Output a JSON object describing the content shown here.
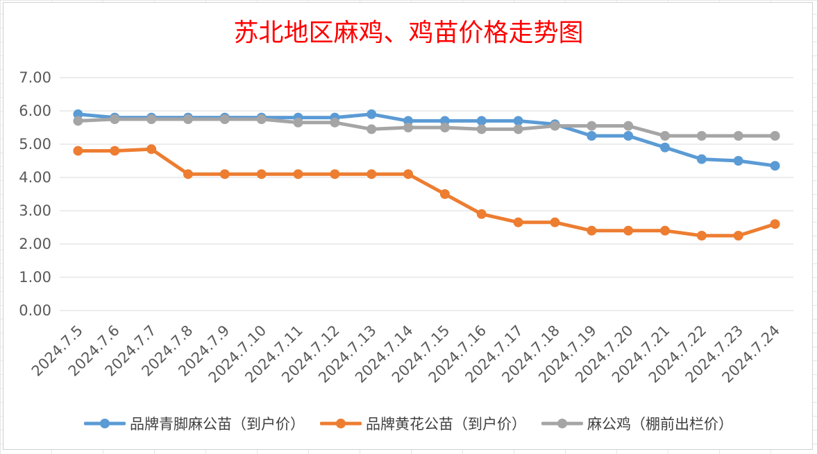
{
  "chart_data": {
    "type": "line",
    "title": "苏北地区麻鸡、鸡苗价格走势图",
    "xlabel": "",
    "ylabel": "",
    "ylim": [
      0,
      7
    ],
    "y_ticks": [
      "0.00",
      "1.00",
      "2.00",
      "3.00",
      "4.00",
      "5.00",
      "6.00",
      "7.00"
    ],
    "grid": true,
    "legend_position": "bottom",
    "categories": [
      "2024.7.5",
      "2024.7.6",
      "2024.7.7",
      "2024.7.8",
      "2024.7.9",
      "2024.7.10",
      "2024.7.11",
      "2024.7.12",
      "2024.7.13",
      "2024.7.14",
      "2024.7.15",
      "2024.7.16",
      "2024.7.17",
      "2024.7.18",
      "2024.7.19",
      "2024.7.20",
      "2024.7.21",
      "2024.7.22",
      "2024.7.23",
      "2024.7.24"
    ],
    "series": [
      {
        "name": "品牌青脚麻公苗（到户价）",
        "color": "#5b9bd5",
        "values": [
          5.9,
          5.8,
          5.8,
          5.8,
          5.8,
          5.8,
          5.8,
          5.8,
          5.9,
          5.7,
          5.7,
          5.7,
          5.7,
          5.6,
          5.25,
          5.25,
          4.9,
          4.55,
          4.5,
          4.35
        ]
      },
      {
        "name": "品牌黄花公苗（到户价）",
        "color": "#ed7d31",
        "values": [
          4.8,
          4.8,
          4.85,
          4.1,
          4.1,
          4.1,
          4.1,
          4.1,
          4.1,
          4.1,
          3.5,
          2.9,
          2.65,
          2.65,
          2.4,
          2.4,
          2.4,
          2.25,
          2.25,
          2.6
        ]
      },
      {
        "name": "麻公鸡（棚前出栏价）",
        "color": "#a5a5a5",
        "values": [
          5.7,
          5.75,
          5.75,
          5.75,
          5.75,
          5.75,
          5.65,
          5.65,
          5.45,
          5.5,
          5.5,
          5.45,
          5.45,
          5.55,
          5.55,
          5.55,
          5.25,
          5.25,
          5.25,
          5.25
        ]
      }
    ]
  }
}
